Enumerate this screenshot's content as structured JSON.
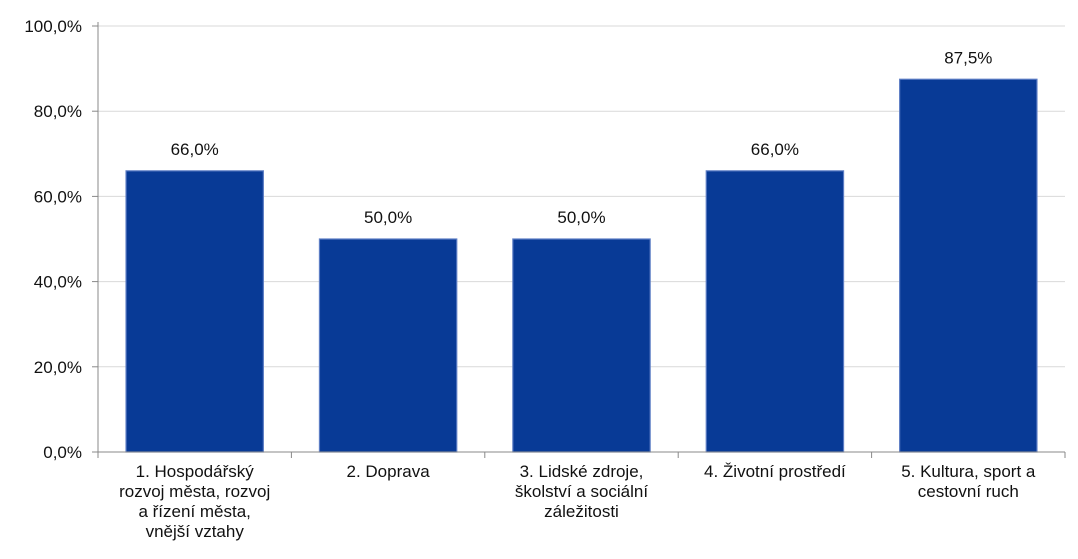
{
  "chart_data": {
    "type": "bar",
    "categories": [
      "1.  Hospodářský\nrozvoj města, rozvoj\na řízení města,\nvnější vztahy",
      "2.  Doprava",
      "3. Lidské zdroje,\nškolství a sociální\nzáležitosti",
      "4. Životní prostředí",
      "5.  Kultura, sport a\ncestovní ruch"
    ],
    "values": [
      66.0,
      50.0,
      50.0,
      66.0,
      87.5
    ],
    "data_labels": [
      "66,0%",
      "50,0%",
      "50,0%",
      "66,0%",
      "87,5%"
    ],
    "ylim": [
      0,
      100
    ],
    "ytick_values": [
      0,
      20,
      40,
      60,
      80,
      100
    ],
    "ytick_labels": [
      "0,0%",
      "20,0%",
      "40,0%",
      "60,0%",
      "80,0%",
      "100,0%"
    ],
    "title": "",
    "xlabel": "",
    "ylabel": "",
    "grid": true,
    "legend": "none",
    "colors": {
      "bar": "#083A96",
      "bar_edge": "#5B7CC4",
      "grid": "#D9D9D9",
      "axis": "#888888"
    }
  }
}
